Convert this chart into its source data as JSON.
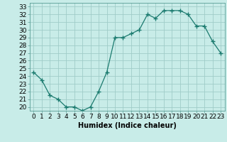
{
  "xlabel": "Humidex (Indice chaleur)",
  "ylabel": "",
  "x_values": [
    0,
    1,
    2,
    3,
    4,
    5,
    6,
    7,
    8,
    9,
    10,
    11,
    12,
    13,
    14,
    15,
    16,
    17,
    18,
    19,
    20,
    21,
    22,
    23
  ],
  "y_values": [
    24.5,
    23.5,
    21.5,
    21.0,
    20.0,
    20.0,
    19.5,
    20.0,
    22.0,
    24.5,
    29.0,
    29.0,
    29.5,
    30.0,
    32.0,
    31.5,
    32.5,
    32.5,
    32.5,
    32.0,
    30.5,
    30.5,
    28.5,
    27.0
  ],
  "line_color": "#1a7a6e",
  "marker": "+",
  "marker_size": 4,
  "bg_color": "#c8ece8",
  "grid_color": "#a0ccc8",
  "ylim": [
    19.5,
    33.5
  ],
  "xlim": [
    -0.5,
    23.5
  ],
  "yticks": [
    20,
    21,
    22,
    23,
    24,
    25,
    26,
    27,
    28,
    29,
    30,
    31,
    32,
    33
  ],
  "xticks": [
    0,
    1,
    2,
    3,
    4,
    5,
    6,
    7,
    8,
    9,
    10,
    11,
    12,
    13,
    14,
    15,
    16,
    17,
    18,
    19,
    20,
    21,
    22,
    23
  ],
  "label_fontsize": 7,
  "tick_fontsize": 6.5
}
